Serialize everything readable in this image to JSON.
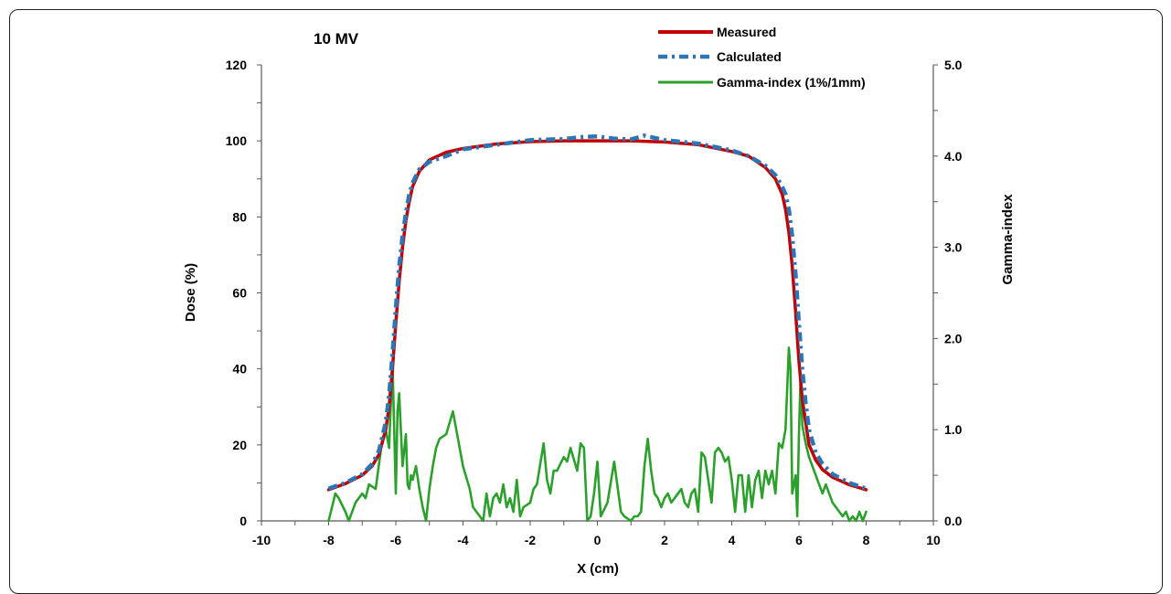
{
  "chart_data": {
    "type": "line",
    "title": "10 MV",
    "xlabel": "X (cm)",
    "ylabel": "Dose (%)",
    "y2label": "Gamma-index",
    "xlim": [
      -10,
      10
    ],
    "ylim": [
      0,
      120
    ],
    "y2lim": [
      0,
      5
    ],
    "xticks": [
      -10,
      -8,
      -6,
      -4,
      -2,
      0,
      2,
      4,
      6,
      8,
      10
    ],
    "yticks": [
      0,
      20,
      40,
      60,
      80,
      100,
      120
    ],
    "y2ticks": [
      "0.0",
      "1.0",
      "2.0",
      "3.0",
      "4.0",
      "5.0"
    ],
    "grid": false,
    "legend_position": "top-right",
    "series": [
      {
        "name": "Measured",
        "axis": "left",
        "color": "#c00000",
        "style": "solid",
        "x": [
          -8,
          -7.5,
          -7,
          -6.7,
          -6.5,
          -6.3,
          -6.2,
          -6.1,
          -6.0,
          -5.9,
          -5.8,
          -5.7,
          -5.6,
          -5.5,
          -5.3,
          -5.0,
          -4.5,
          -4.0,
          -3.0,
          -2.0,
          -1.0,
          0,
          1.0,
          2.0,
          3.0,
          4.0,
          4.5,
          5.0,
          5.3,
          5.5,
          5.6,
          5.7,
          5.8,
          5.9,
          6.0,
          6.1,
          6.2,
          6.3,
          6.5,
          6.7,
          7.0,
          7.5,
          8.0
        ],
        "y": [
          8.2,
          9.8,
          12.0,
          14.5,
          17.5,
          24.0,
          30.0,
          40.0,
          52.0,
          63.0,
          72.0,
          79.0,
          84.0,
          88.0,
          92.0,
          95.0,
          97.0,
          98.0,
          99.2,
          99.8,
          100.0,
          100.0,
          100.0,
          99.7,
          99.0,
          97.2,
          96.0,
          93.0,
          90.0,
          86.0,
          82.0,
          76.0,
          67.0,
          55.0,
          42.0,
          32.0,
          26.0,
          20.0,
          16.0,
          13.5,
          11.5,
          9.5,
          8.2
        ]
      },
      {
        "name": "Calculated",
        "axis": "left",
        "color": "#2e75b6",
        "style": "dashed",
        "x": [
          -8,
          -7.5,
          -7,
          -6.7,
          -6.5,
          -6.3,
          -6.2,
          -6.1,
          -6.0,
          -5.9,
          -5.8,
          -5.7,
          -5.6,
          -5.5,
          -5.3,
          -5.0,
          -4.5,
          -4.0,
          -3.0,
          -2.0,
          -1.0,
          -0.5,
          0,
          0.5,
          1.0,
          1.4,
          2.0,
          3.0,
          4.0,
          4.5,
          5.0,
          5.3,
          5.5,
          5.6,
          5.7,
          5.8,
          5.9,
          6.0,
          6.1,
          6.2,
          6.3,
          6.5,
          6.7,
          7.0,
          7.5,
          8.0
        ],
        "y": [
          8.5,
          10.0,
          12.3,
          15.0,
          18.5,
          26.0,
          33.0,
          44.0,
          56.0,
          67.0,
          75.0,
          81.0,
          86.0,
          89.0,
          92.5,
          94.5,
          96.0,
          97.8,
          99.0,
          100.2,
          100.5,
          101.0,
          101.2,
          100.6,
          100.4,
          101.4,
          100.2,
          99.3,
          97.5,
          96.0,
          93.5,
          91.0,
          88.0,
          86.0,
          82.0,
          75.0,
          65.0,
          52.0,
          40.0,
          31.0,
          24.0,
          18.0,
          15.0,
          12.3,
          10.0,
          8.5
        ]
      },
      {
        "name": "Gamma-index (1%/1mm)",
        "axis": "right",
        "color": "#2ca02c",
        "style": "solid",
        "x": [
          -8.0,
          -7.9,
          -7.8,
          -7.7,
          -7.5,
          -7.4,
          -7.3,
          -7.2,
          -7.0,
          -6.9,
          -6.8,
          -6.6,
          -6.4,
          -6.3,
          -6.2,
          -6.1,
          -6.0,
          -5.95,
          -5.9,
          -5.8,
          -5.7,
          -5.65,
          -5.6,
          -5.55,
          -5.5,
          -5.4,
          -5.3,
          -5.2,
          -5.1,
          -5.0,
          -4.9,
          -4.8,
          -4.7,
          -4.5,
          -4.3,
          -4.2,
          -4.0,
          -3.8,
          -3.7,
          -3.5,
          -3.4,
          -3.3,
          -3.2,
          -3.1,
          -3.0,
          -2.9,
          -2.8,
          -2.7,
          -2.6,
          -2.5,
          -2.4,
          -2.3,
          -2.2,
          -2.0,
          -1.9,
          -1.8,
          -1.6,
          -1.5,
          -1.4,
          -1.3,
          -1.2,
          -1.0,
          -0.9,
          -0.8,
          -0.6,
          -0.5,
          -0.4,
          -0.3,
          -0.2,
          -0.1,
          0.0,
          0.1,
          0.3,
          0.5,
          0.7,
          0.8,
          1.0,
          1.1,
          1.2,
          1.3,
          1.4,
          1.5,
          1.6,
          1.7,
          1.8,
          1.9,
          2.0,
          2.1,
          2.2,
          2.3,
          2.5,
          2.6,
          2.7,
          2.8,
          2.9,
          3.0,
          3.1,
          3.2,
          3.3,
          3.4,
          3.5,
          3.6,
          3.7,
          3.8,
          3.9,
          4.0,
          4.1,
          4.2,
          4.3,
          4.4,
          4.5,
          4.6,
          4.7,
          4.8,
          4.9,
          5.0,
          5.1,
          5.2,
          5.3,
          5.4,
          5.5,
          5.6,
          5.7,
          5.75,
          5.8,
          5.9,
          5.95,
          6.0,
          6.05,
          6.1,
          6.2,
          6.3,
          6.4,
          6.5,
          6.6,
          6.7,
          6.8,
          6.9,
          7.0,
          7.1,
          7.2,
          7.3,
          7.4,
          7.5,
          7.6,
          7.7,
          7.8,
          7.9,
          8.0
        ],
        "y": [
          0.0,
          0.15,
          0.3,
          0.25,
          0.1,
          0.0,
          0.1,
          0.2,
          0.3,
          0.25,
          0.4,
          0.35,
          0.9,
          1.0,
          0.8,
          1.75,
          0.3,
          1.2,
          1.4,
          0.6,
          0.95,
          0.4,
          0.35,
          0.5,
          0.45,
          0.6,
          0.35,
          0.15,
          0.0,
          0.35,
          0.6,
          0.8,
          0.9,
          0.95,
          1.2,
          1.0,
          0.6,
          0.35,
          0.15,
          0.05,
          0.0,
          0.3,
          0.05,
          0.25,
          0.3,
          0.2,
          0.4,
          0.15,
          0.25,
          0.1,
          0.45,
          0.05,
          0.15,
          0.2,
          0.35,
          0.4,
          0.85,
          0.45,
          0.3,
          0.55,
          0.55,
          0.7,
          0.65,
          0.8,
          0.55,
          0.85,
          0.8,
          0.0,
          0.05,
          0.3,
          0.65,
          0.05,
          0.2,
          0.65,
          0.1,
          0.05,
          0.0,
          0.05,
          0.05,
          0.1,
          0.6,
          0.9,
          0.55,
          0.3,
          0.25,
          0.15,
          0.25,
          0.3,
          0.2,
          0.25,
          0.35,
          0.2,
          0.15,
          0.3,
          0.35,
          0.1,
          0.75,
          0.7,
          0.45,
          0.2,
          0.75,
          0.8,
          0.75,
          0.65,
          0.7,
          0.45,
          0.1,
          0.5,
          0.5,
          0.1,
          0.5,
          0.15,
          0.45,
          0.55,
          0.25,
          0.55,
          0.4,
          0.55,
          0.3,
          0.85,
          0.8,
          1.0,
          1.9,
          1.65,
          0.3,
          0.5,
          0.05,
          0.95,
          1.6,
          1.05,
          0.85,
          0.7,
          0.6,
          0.5,
          0.4,
          0.3,
          0.4,
          0.3,
          0.2,
          0.15,
          0.1,
          0.05,
          0.1,
          0.0,
          0.05,
          0.0,
          0.1,
          0.0,
          0.1
        ]
      }
    ]
  }
}
